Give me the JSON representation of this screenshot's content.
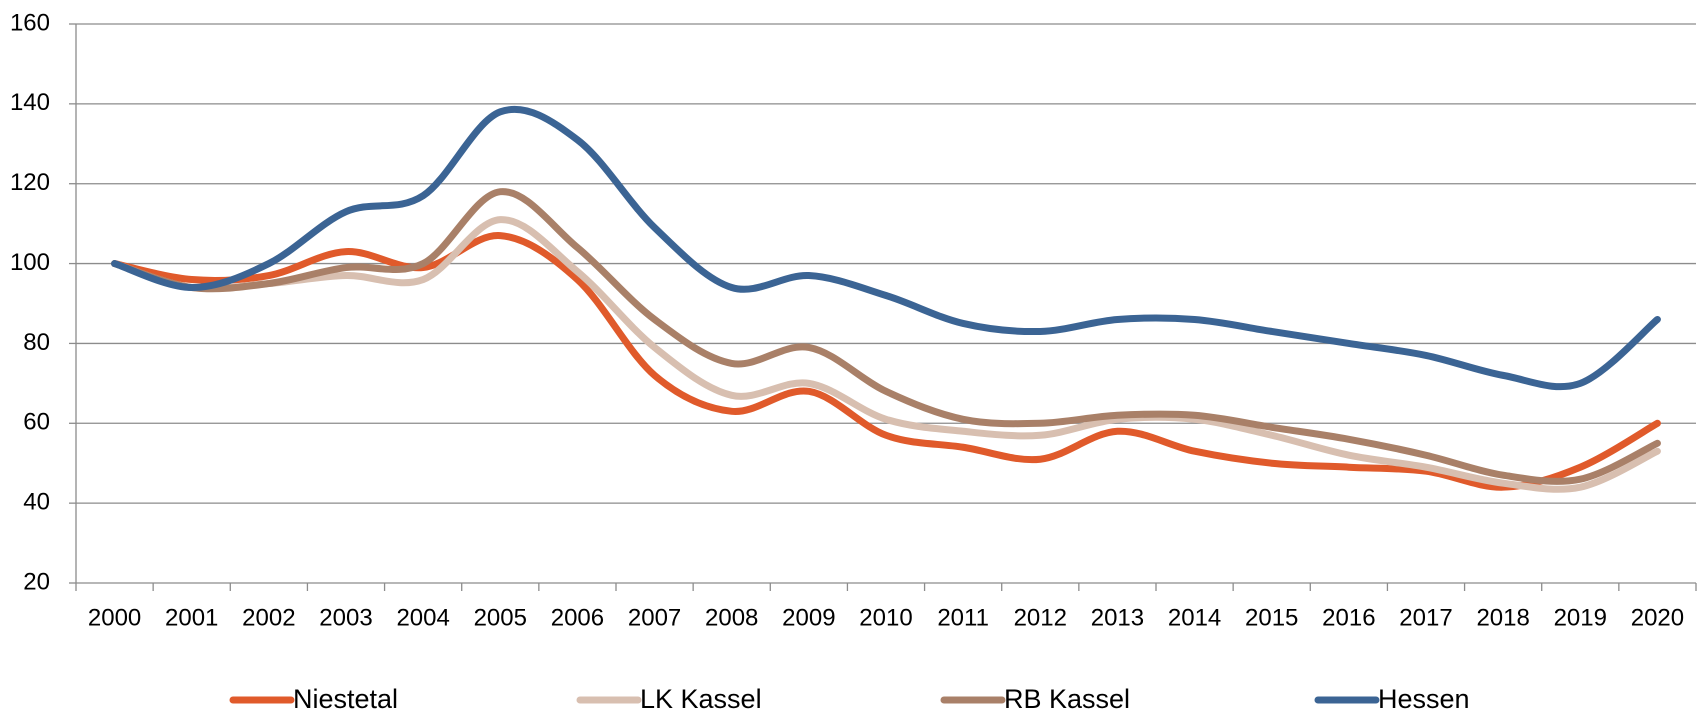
{
  "chart_data": {
    "type": "line",
    "categories": [
      "2000",
      "2001",
      "2002",
      "2003",
      "2004",
      "2005",
      "2006",
      "2007",
      "2008",
      "2009",
      "2010",
      "2011",
      "2012",
      "2013",
      "2014",
      "2015",
      "2016",
      "2017",
      "2018",
      "2019",
      "2020"
    ],
    "series": [
      {
        "name": "Niestetal",
        "color": "#e05a2b",
        "values": [
          100,
          96,
          97,
          103,
          99,
          107,
          96,
          72,
          63,
          68,
          57,
          54,
          51,
          58,
          53,
          50,
          49,
          48,
          44,
          49,
          60
        ]
      },
      {
        "name": "LK Kassel",
        "color": "#d8bfb0",
        "values": [
          100,
          94,
          95,
          97,
          96,
          111,
          98,
          79,
          67,
          70,
          61,
          58,
          57,
          61,
          61,
          57,
          52,
          49,
          45,
          44,
          53
        ]
      },
      {
        "name": "RB Kassel",
        "color": "#a98068",
        "values": [
          100,
          94,
          95,
          99,
          100,
          118,
          104,
          86,
          75,
          79,
          68,
          61,
          60,
          62,
          62,
          59,
          56,
          52,
          47,
          46,
          55
        ]
      },
      {
        "name": "Hessen",
        "color": "#3b6494",
        "values": [
          100,
          94,
          100,
          113,
          117,
          138,
          131,
          109,
          94,
          97,
          92,
          85,
          83,
          86,
          86,
          83,
          80,
          77,
          72,
          70,
          86
        ]
      }
    ],
    "ylim": [
      20,
      160
    ],
    "yticks": [
      20,
      40,
      60,
      80,
      100,
      120,
      140,
      160
    ],
    "grid": true,
    "legend": "bottom"
  }
}
